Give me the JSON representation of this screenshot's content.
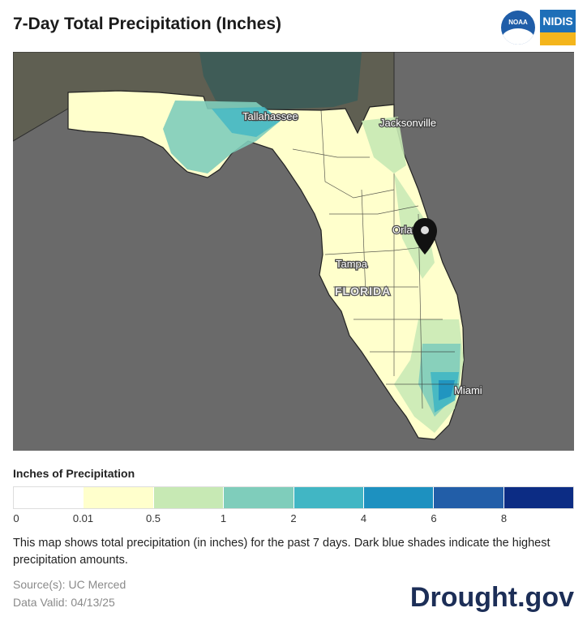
{
  "title": "7-Day Total Precipitation (Inches)",
  "logos": {
    "noaa": "NOAA",
    "nidis": "NIDIS"
  },
  "map": {
    "labels": {
      "tallahassee": "Tallahassee",
      "jacksonville": "Jacksonville",
      "orlando": "Orlando",
      "tampa": "Tampa",
      "state": "FLORIDA",
      "miami": "Miami"
    },
    "marker_icon": "map-pin-icon",
    "colors": {
      "water": "#6a6a6a",
      "land_outside": "#5f5f52",
      "land_outside_wet": "#3d5a55"
    }
  },
  "legend": {
    "title": "Inches of Precipitation",
    "colors": [
      "#ffffff",
      "#ffffcc",
      "#c7e9b4",
      "#7fcdbb",
      "#41b6c4",
      "#1d91c0",
      "#225ea8",
      "#0c2c84"
    ],
    "ticks": [
      "0",
      "0.01",
      "0.5",
      "1",
      "2",
      "4",
      "6",
      "8"
    ]
  },
  "description": "This map shows total precipitation (in inches) for the past 7 days. Dark blue shades indicate the highest precipitation amounts.",
  "source": "Source(s): UC Merced",
  "valid": "Data Valid: 04/13/25",
  "brand": "Drought.gov"
}
